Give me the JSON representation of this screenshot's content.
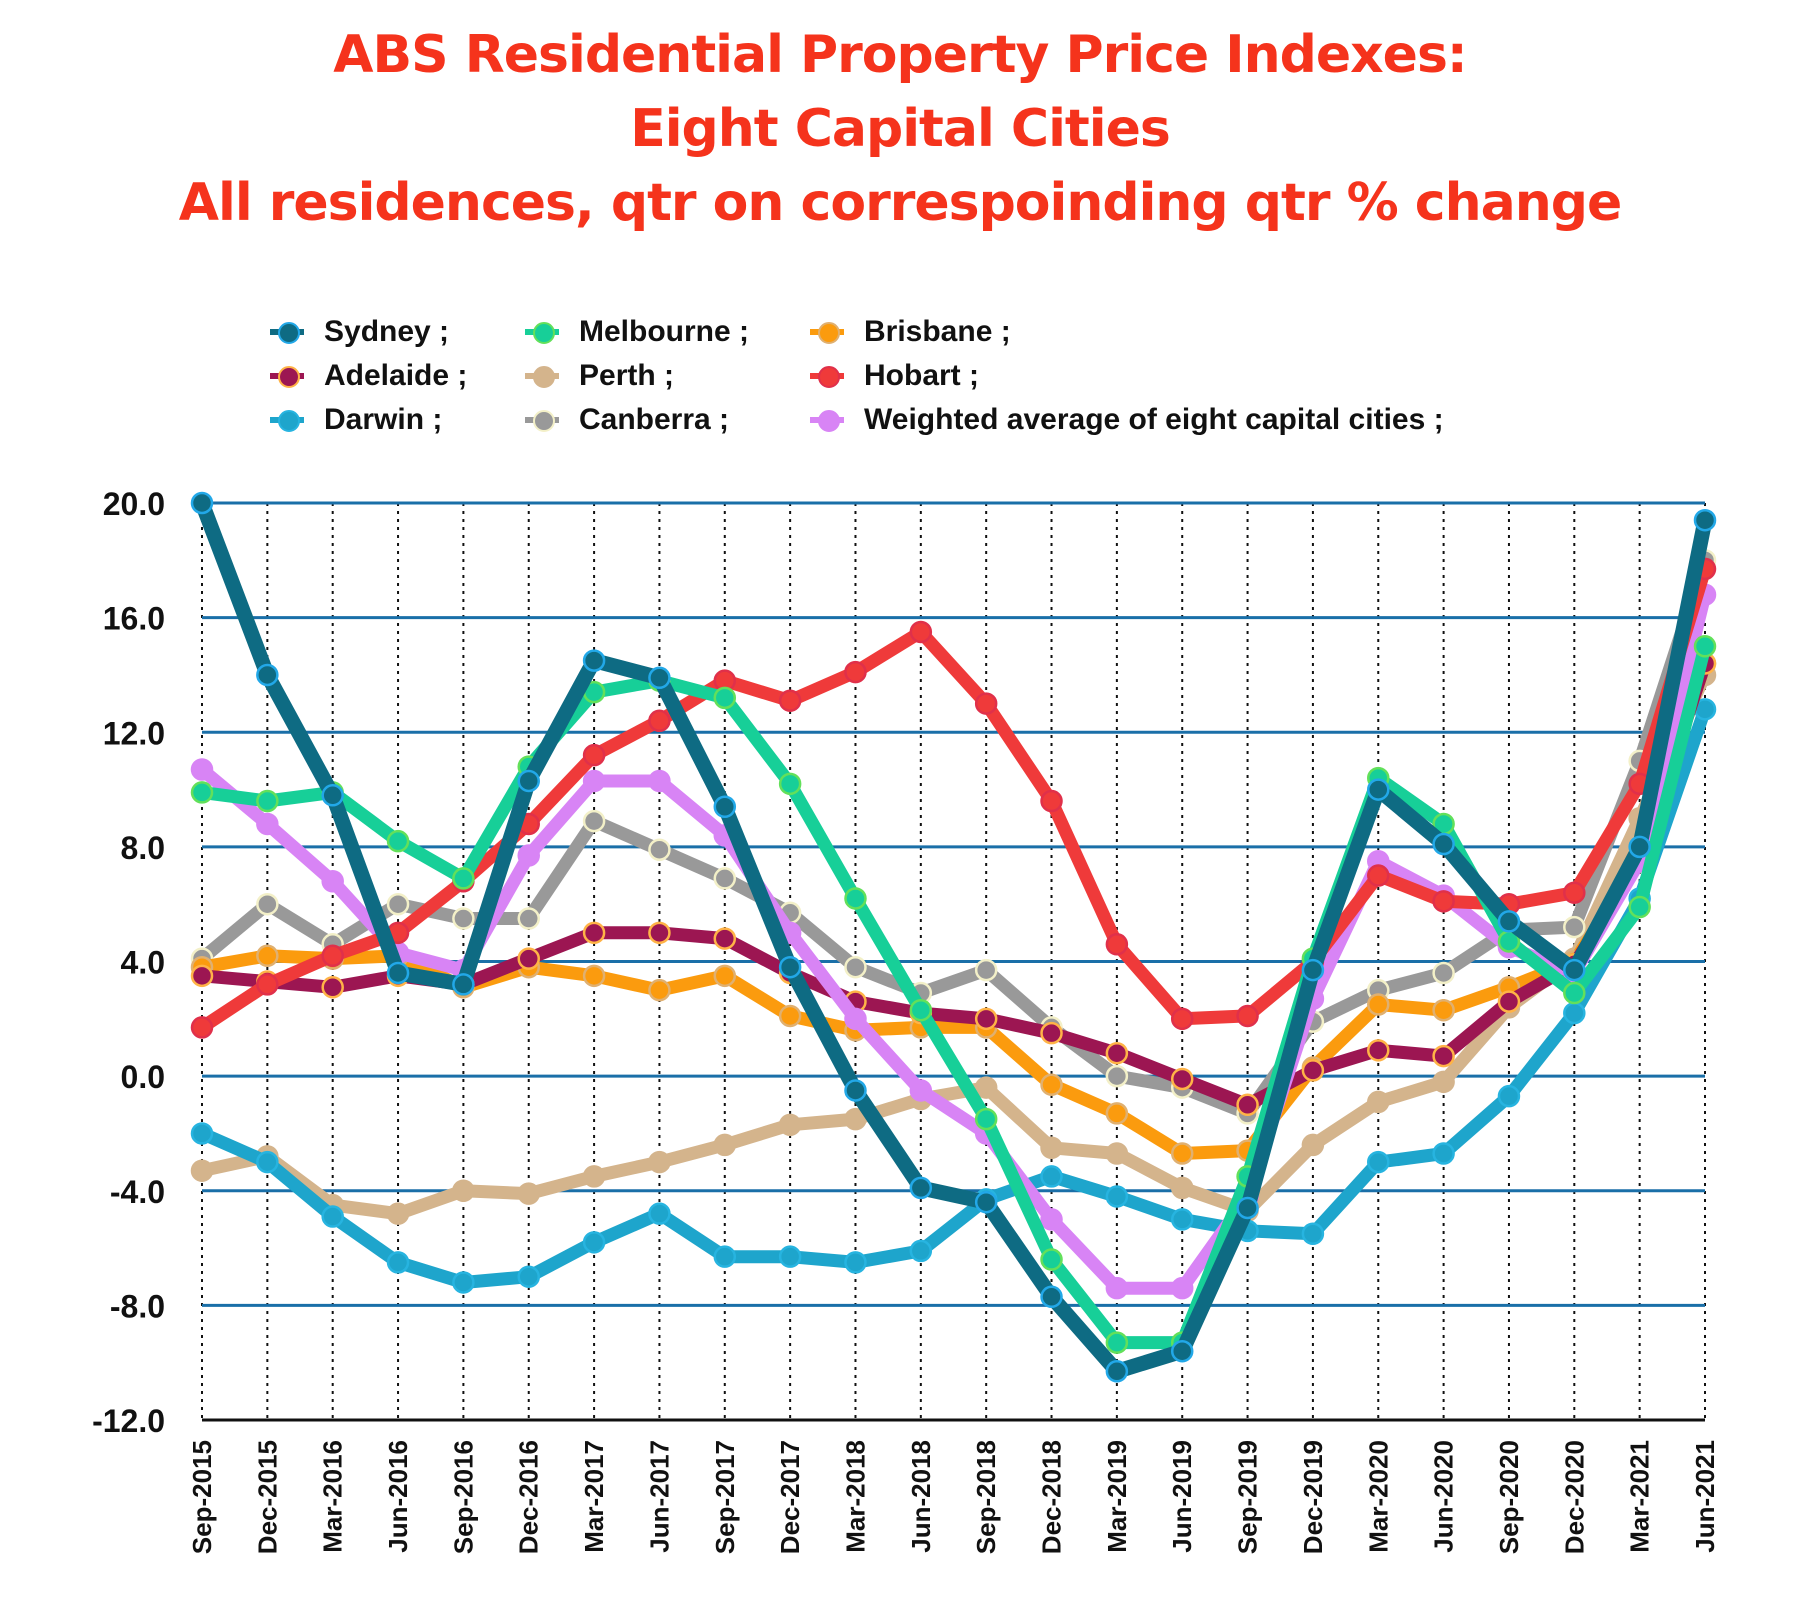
{
  "chart_data": {
    "type": "line",
    "title": [
      "ABS Residential Property Price Indexes:",
      "Eight Capital Cities",
      "All residences, qtr on correspoinding qtr % change"
    ],
    "xlabel": "",
    "ylabel": "",
    "ylim": [
      -12,
      20
    ],
    "yticks": [
      20,
      16,
      12,
      8,
      4,
      0,
      -4,
      -8,
      -12
    ],
    "ytick_labels": [
      "20.0",
      "16.0",
      "12.0",
      "8.0",
      "4.0",
      "0.0",
      "-4.0",
      "-8.0",
      "-12.0"
    ],
    "grid": "horizontal solid, vertical dotted",
    "legend_position": "top",
    "categories": [
      "Sep-2015",
      "Dec-2015",
      "Mar-2016",
      "Jun-2016",
      "Sep-2016",
      "Dec-2016",
      "Mar-2017",
      "Jun-2017",
      "Sep-2017",
      "Dec-2017",
      "Mar-2018",
      "Jun-2018",
      "Sep-2018",
      "Dec-2018",
      "Mar-2019",
      "Jun-2019",
      "Sep-2019",
      "Dec-2019",
      "Mar-2020",
      "Jun-2020",
      "Sep-2020",
      "Dec-2020",
      "Mar-2021",
      "Jun-2021"
    ],
    "series": [
      {
        "name": "Perth",
        "legend": "Perth ;",
        "color": "#d4b48c",
        "marker_edge": "#d4b48c",
        "values": [
          -3.3,
          -2.8,
          -4.5,
          -4.8,
          -4.0,
          -4.1,
          -3.5,
          -3.0,
          -2.4,
          -1.7,
          -1.5,
          -0.8,
          -0.4,
          -2.5,
          -2.7,
          -3.9,
          -4.7,
          -2.4,
          -0.9,
          -0.2,
          2.4,
          4.1,
          9.0,
          14.0
        ]
      },
      {
        "name": "Darwin",
        "legend": "Darwin ;",
        "color": "#1ea5cc",
        "marker_edge": "#27b4e0",
        "values": [
          -2.0,
          -3.0,
          -4.9,
          -6.5,
          -7.2,
          -7.0,
          -5.8,
          -4.8,
          -6.3,
          -6.3,
          -6.5,
          -6.1,
          -4.3,
          -3.5,
          -4.2,
          -5.0,
          -5.4,
          -5.5,
          -3.0,
          -2.7,
          -0.7,
          2.2,
          6.2,
          12.8
        ]
      },
      {
        "name": "Canberra",
        "legend": "Canberra ;",
        "color": "#999999",
        "marker_edge": "#f3f0c8",
        "values": [
          4.1,
          6.0,
          4.6,
          6.0,
          5.5,
          5.5,
          8.9,
          7.9,
          6.9,
          5.7,
          3.8,
          2.9,
          3.7,
          1.7,
          0.0,
          -0.4,
          -1.3,
          1.9,
          3.0,
          3.6,
          5.1,
          5.2,
          11.0,
          18.0
        ]
      },
      {
        "name": "Brisbane",
        "legend": "Brisbane ;",
        "color": "#fb9b0e",
        "marker_edge": "#e0b070",
        "values": [
          3.8,
          4.2,
          4.1,
          4.2,
          3.1,
          3.8,
          3.5,
          3.0,
          3.5,
          2.1,
          1.6,
          1.7,
          1.7,
          -0.3,
          -1.3,
          -2.7,
          -2.6,
          0.3,
          2.5,
          2.3,
          3.1,
          4.0,
          7.5,
          14.4
        ]
      },
      {
        "name": "Adelaide",
        "legend": "Adelaide ;",
        "color": "#9c1652",
        "marker_edge": "#ffb347",
        "values": [
          3.5,
          3.3,
          3.1,
          3.5,
          3.2,
          4.1,
          5.0,
          5.0,
          4.8,
          3.6,
          2.6,
          2.2,
          2.0,
          1.5,
          0.8,
          -0.1,
          -1.0,
          0.2,
          0.9,
          0.7,
          2.6,
          3.9,
          7.5,
          14.4
        ]
      },
      {
        "name": "Weighted average of eight capital cities",
        "legend": "Weighted average of eight capital cities ;",
        "color": "#d884f5",
        "marker_edge": "#d884f5",
        "values": [
          10.7,
          8.8,
          6.8,
          4.3,
          3.7,
          7.7,
          10.3,
          10.3,
          8.4,
          5.0,
          2.0,
          -0.5,
          -2.0,
          -5.0,
          -7.4,
          -7.4,
          -4.2,
          2.7,
          7.5,
          6.3,
          4.5,
          3.6,
          7.5,
          16.8
        ]
      },
      {
        "name": "Hobart",
        "legend": "Hobart ;",
        "color": "#ef3a3a",
        "marker_edge": "#e0304a",
        "values": [
          1.7,
          3.2,
          4.2,
          5.0,
          6.8,
          8.8,
          11.2,
          12.4,
          13.8,
          13.1,
          14.1,
          15.5,
          13.0,
          9.6,
          4.6,
          2.0,
          2.1,
          4.0,
          7.0,
          6.1,
          6.0,
          6.4,
          10.2,
          17.7
        ]
      },
      {
        "name": "Melbourne",
        "legend": "Melbourne ;",
        "color": "#17cf98",
        "marker_edge": "#63e05a",
        "values": [
          9.9,
          9.6,
          9.9,
          8.2,
          6.9,
          10.8,
          13.4,
          13.8,
          13.2,
          10.2,
          6.2,
          2.3,
          -1.5,
          -6.4,
          -9.3,
          -9.3,
          -3.5,
          4.1,
          10.4,
          8.8,
          4.7,
          2.9,
          5.9,
          15.0
        ]
      },
      {
        "name": "Sydney",
        "legend": "Sydney ;",
        "color": "#0e6b83",
        "marker_edge": "#22a8e8",
        "values": [
          20.0,
          14.0,
          9.8,
          3.6,
          3.2,
          10.3,
          14.5,
          13.9,
          9.4,
          3.8,
          -0.5,
          -3.9,
          -4.4,
          -7.7,
          -10.3,
          -9.6,
          -4.6,
          3.7,
          10.0,
          8.1,
          5.4,
          3.7,
          8.0,
          19.4
        ]
      }
    ],
    "legend_order": [
      "Sydney",
      "Melbourne",
      "Brisbane",
      "Adelaide",
      "Perth",
      "Hobart",
      "Darwin",
      "Canberra",
      "Weighted average of eight capital cities"
    ],
    "colors": {
      "title": "#f5331c",
      "gridline": "#1a6fa8",
      "axis_text": "#111111"
    }
  }
}
